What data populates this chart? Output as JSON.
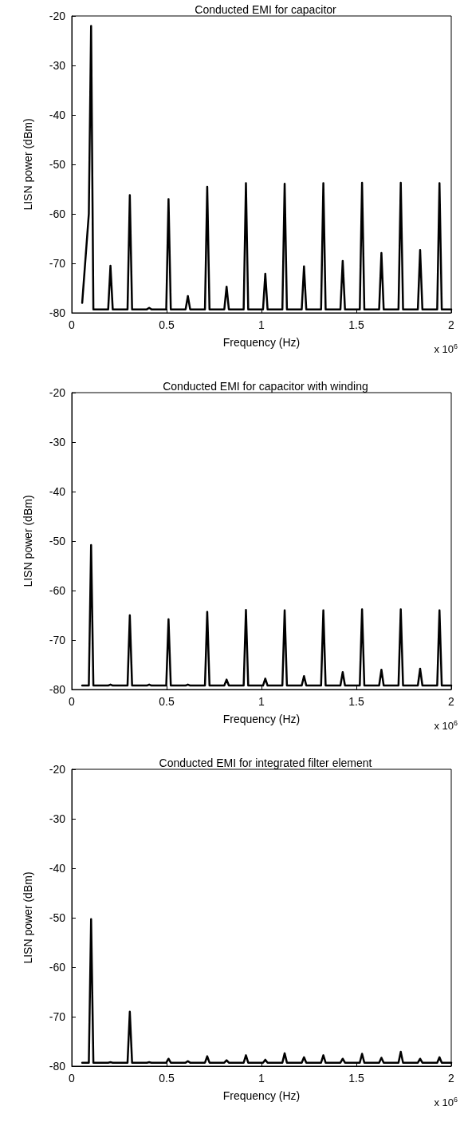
{
  "chart_data": [
    {
      "type": "line",
      "title": "Conducted EMI for capacitor",
      "xlabel": "Frequency (Hz)",
      "ylabel": "LISN power (dBm)",
      "annotations": [
        "x 10$^{6}$"
      ],
      "marker": "none",
      "line_style": "solid",
      "xlim": [
        0,
        2
      ],
      "xticks": [
        0,
        0.5,
        1,
        1.5,
        2
      ],
      "ylim": [
        -80,
        -20
      ],
      "yticks": [
        -80,
        -70,
        -60,
        -50,
        -40,
        -30,
        -20
      ],
      "series": [
        {
          "color": "#000000",
          "x": [
            0.055,
            0.09,
            0.102,
            0.114,
            0.192,
            0.204,
            0.216,
            0.294,
            0.306,
            0.318,
            0.396,
            0.408,
            0.42,
            0.498,
            0.51,
            0.522,
            0.6,
            0.612,
            0.624,
            0.702,
            0.714,
            0.726,
            0.804,
            0.816,
            0.828,
            0.906,
            0.918,
            0.93,
            1.008,
            1.02,
            1.032,
            1.11,
            1.122,
            1.134,
            1.212,
            1.224,
            1.236,
            1.314,
            1.326,
            1.338,
            1.416,
            1.428,
            1.44,
            1.518,
            1.53,
            1.542,
            1.62,
            1.632,
            1.644,
            1.722,
            1.734,
            1.746,
            1.824,
            1.836,
            1.848,
            1.926,
            1.938,
            1.95,
            2
          ],
          "values": [
            -78,
            -60,
            -22,
            -79.3,
            -79.3,
            -70.5,
            -79.3,
            -79.3,
            -56.2,
            -79.3,
            -79.3,
            -79,
            -79.3,
            -79.3,
            -57,
            -79.3,
            -79.3,
            -76.6,
            -79.3,
            -79.3,
            -54.5,
            -79.3,
            -79.3,
            -74.7,
            -79.3,
            -79.3,
            -53.8,
            -79.3,
            -79.3,
            -72.1,
            -79.3,
            -79.3,
            -53.9,
            -79.3,
            -79.3,
            -70.6,
            -79.3,
            -79.3,
            -53.8,
            -79.3,
            -79.3,
            -69.5,
            -79.3,
            -79.3,
            -53.7,
            -79.3,
            -79.3,
            -67.9,
            -79.3,
            -79.3,
            -53.7,
            -79.3,
            -79.3,
            -67.3,
            -79.3,
            -79.3,
            -53.8,
            -79.3,
            -79.3
          ]
        }
      ]
    },
    {
      "type": "line",
      "title": "Conducted EMI for capacitor with winding",
      "xlabel": "Frequency (Hz)",
      "ylabel": "LISN power (dBm)",
      "annotations": [
        "x 10$^{6}$"
      ],
      "marker": "none",
      "line_style": "solid",
      "xlim": [
        0,
        2
      ],
      "xticks": [
        0,
        0.5,
        1,
        1.5,
        2
      ],
      "ylim": [
        -80,
        -20
      ],
      "yticks": [
        -80,
        -70,
        -60,
        -50,
        -40,
        -30,
        -20
      ],
      "series": [
        {
          "color": "#000000",
          "x": [
            0.055,
            0.09,
            0.102,
            0.114,
            0.192,
            0.204,
            0.216,
            0.294,
            0.306,
            0.318,
            0.396,
            0.408,
            0.42,
            0.498,
            0.51,
            0.522,
            0.6,
            0.612,
            0.624,
            0.702,
            0.714,
            0.726,
            0.804,
            0.816,
            0.828,
            0.906,
            0.918,
            0.93,
            1.008,
            1.02,
            1.032,
            1.11,
            1.122,
            1.134,
            1.212,
            1.224,
            1.236,
            1.314,
            1.326,
            1.338,
            1.416,
            1.428,
            1.44,
            1.518,
            1.53,
            1.542,
            1.62,
            1.632,
            1.644,
            1.722,
            1.734,
            1.746,
            1.824,
            1.836,
            1.848,
            1.926,
            1.938,
            1.95,
            2
          ],
          "values": [
            -79.2,
            -79.2,
            -50.8,
            -79.2,
            -79.2,
            -79,
            -79.2,
            -79.2,
            -65,
            -79.2,
            -79.2,
            -79,
            -79.2,
            -79.2,
            -65.8,
            -79.2,
            -79.2,
            -79,
            -79.2,
            -79.2,
            -64.3,
            -79.2,
            -79.2,
            -78,
            -79.2,
            -79.2,
            -63.9,
            -79.2,
            -79.2,
            -77.8,
            -79.2,
            -79.2,
            -64,
            -79.2,
            -79.2,
            -77.3,
            -79.2,
            -79.2,
            -64,
            -79.2,
            -79.2,
            -76.5,
            -79.2,
            -79.2,
            -63.8,
            -79.2,
            -79.2,
            -76,
            -79.2,
            -79.2,
            -63.8,
            -79.2,
            -79.2,
            -75.8,
            -79.2,
            -79.2,
            -64,
            -79.2,
            -79.2
          ]
        }
      ]
    },
    {
      "type": "line",
      "title": "Conducted EMI for integrated filter element",
      "xlabel": "Frequency (Hz)",
      "ylabel": "LISN power (dBm)",
      "annotations": [
        "x 10$^{6}$"
      ],
      "marker": "none",
      "line_style": "solid",
      "xlim": [
        0,
        2
      ],
      "xticks": [
        0,
        0.5,
        1,
        1.5,
        2
      ],
      "ylim": [
        -80,
        -20
      ],
      "yticks": [
        -80,
        -70,
        -60,
        -50,
        -40,
        -30,
        -20
      ],
      "series": [
        {
          "color": "#000000",
          "x": [
            0.055,
            0.09,
            0.102,
            0.114,
            0.192,
            0.204,
            0.216,
            0.294,
            0.306,
            0.318,
            0.396,
            0.408,
            0.42,
            0.498,
            0.51,
            0.522,
            0.6,
            0.612,
            0.624,
            0.702,
            0.714,
            0.726,
            0.804,
            0.816,
            0.828,
            0.906,
            0.918,
            0.93,
            1.008,
            1.02,
            1.032,
            1.11,
            1.122,
            1.134,
            1.212,
            1.224,
            1.236,
            1.314,
            1.326,
            1.338,
            1.416,
            1.428,
            1.44,
            1.518,
            1.53,
            1.542,
            1.62,
            1.632,
            1.644,
            1.722,
            1.734,
            1.746,
            1.824,
            1.836,
            1.848,
            1.926,
            1.938,
            1.95,
            2
          ],
          "values": [
            -79.3,
            -79.3,
            -50.3,
            -79.3,
            -79.3,
            -79.2,
            -79.3,
            -79.3,
            -69,
            -79.3,
            -79.3,
            -79.2,
            -79.3,
            -79.3,
            -78.5,
            -79.3,
            -79.3,
            -79,
            -79.3,
            -79.3,
            -78,
            -79.3,
            -79.3,
            -78.8,
            -79.3,
            -79.3,
            -77.8,
            -79.3,
            -79.3,
            -78.7,
            -79.3,
            -79.3,
            -77.4,
            -79.3,
            -79.3,
            -78.2,
            -79.3,
            -79.3,
            -77.8,
            -79.3,
            -79.3,
            -78.5,
            -79.3,
            -79.3,
            -77.5,
            -79.3,
            -79.3,
            -78.3,
            -79.3,
            -79.3,
            -77.1,
            -79.3,
            -79.3,
            -78.5,
            -79.3,
            -79.3,
            -78.2,
            -79.3,
            -79.3
          ]
        }
      ]
    }
  ]
}
